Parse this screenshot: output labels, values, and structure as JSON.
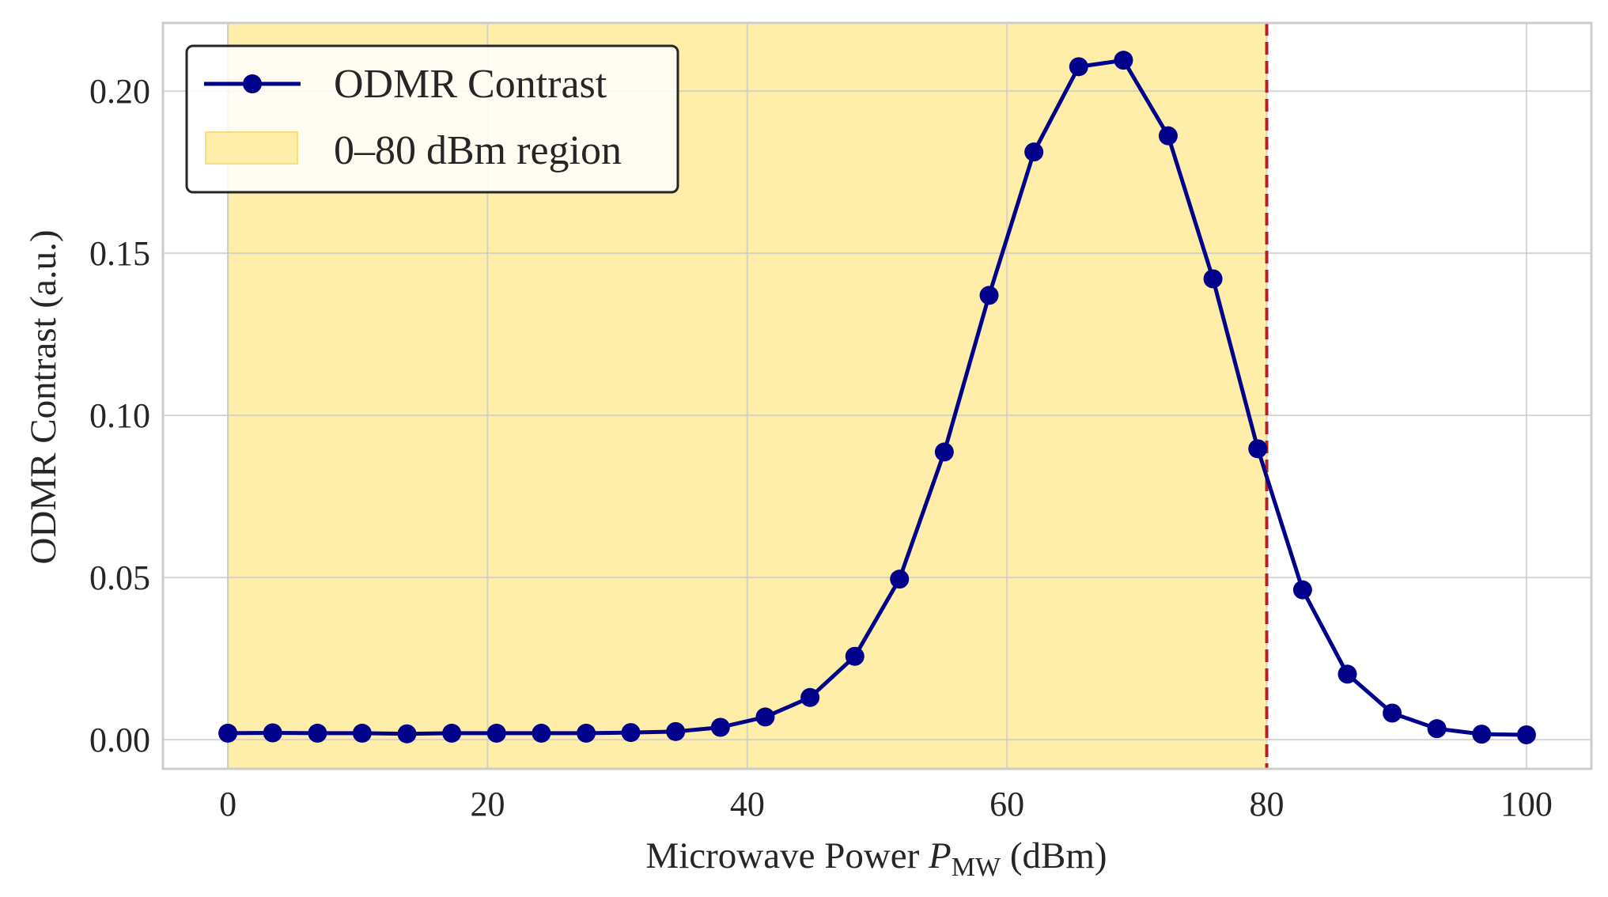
{
  "chart_data": {
    "type": "line",
    "title": "",
    "xlabel_prefix": "Microwave Power ",
    "xlabel_var": "P",
    "xlabel_sub": "MW",
    "xlabel_suffix": " (dBm)",
    "ylabel": "ODMR Contrast (a.u.)",
    "xlim": [
      -5,
      105
    ],
    "ylim": [
      -0.009,
      0.221
    ],
    "xticks": [
      0,
      20,
      40,
      60,
      80,
      100
    ],
    "xtick_labels": [
      "0",
      "20",
      "40",
      "60",
      "80",
      "100"
    ],
    "yticks": [
      0.0,
      0.05,
      0.1,
      0.15,
      0.2
    ],
    "ytick_labels": [
      "0.00",
      "0.05",
      "0.10",
      "0.15",
      "0.20"
    ],
    "grid": true,
    "legend_position": "top-left",
    "series": [
      {
        "name": "ODMR Contrast",
        "color": "#00008b",
        "marker": "circle",
        "x": [
          0,
          3.45,
          6.9,
          10.34,
          13.79,
          17.24,
          20.69,
          24.14,
          27.59,
          31.03,
          34.48,
          37.93,
          41.38,
          44.83,
          48.28,
          51.72,
          55.17,
          58.62,
          62.07,
          65.52,
          68.97,
          72.41,
          75.86,
          79.31,
          82.76,
          86.21,
          89.66,
          93.1,
          96.55,
          100
        ],
        "values": [
          0.002,
          0.0021,
          0.002,
          0.002,
          0.0018,
          0.002,
          0.002,
          0.002,
          0.002,
          0.0022,
          0.0025,
          0.0038,
          0.007,
          0.013,
          0.0257,
          0.0495,
          0.0887,
          0.137,
          0.1812,
          0.2075,
          0.2095,
          0.1862,
          0.1421,
          0.0897,
          0.0462,
          0.0202,
          0.0082,
          0.0034,
          0.0017,
          0.0015
        ]
      }
    ],
    "shaded_region": {
      "name": "0–80 dBm region",
      "x_start": 0,
      "x_end": 80,
      "color": "#ffeeaa"
    },
    "vertical_line": {
      "x": 80,
      "color": "#b22222",
      "style": "dashed"
    }
  }
}
